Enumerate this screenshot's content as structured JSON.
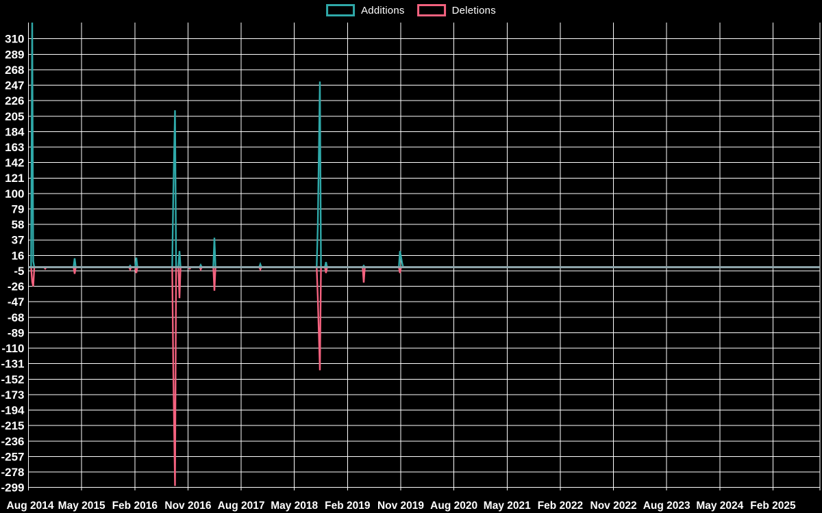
{
  "colors": {
    "background": "#000000",
    "grid": "#ffffff",
    "text": "#ffffff",
    "additions": "#2fa9a9",
    "deletions": "#f4627f",
    "baseline_blend": "#8fa6ac"
  },
  "chart_data": {
    "type": "line",
    "title": "",
    "description": "Weekly additions (positive) and deletions (negative) over time; flat at 0 between spike events",
    "legend_position": "top-center",
    "grid": true,
    "x_axis": {
      "unit": "months_since_first_tick",
      "tick_interval_months": 9,
      "ticks": [
        "Aug 2014",
        "May 2015",
        "Feb 2016",
        "Nov 2016",
        "Aug 2017",
        "May 2018",
        "Feb 2019",
        "Nov 2019",
        "Aug 2020",
        "May 2021",
        "Feb 2022",
        "Nov 2022",
        "Aug 2023",
        "May 2024",
        "Feb 2025"
      ]
    },
    "y_axis": {
      "ticks": [
        310,
        289,
        268,
        247,
        226,
        205,
        184,
        163,
        142,
        121,
        100,
        79,
        58,
        37,
        16,
        -5,
        -26,
        -47,
        -68,
        -89,
        -110,
        -131,
        -152,
        -173,
        -194,
        -215,
        -236,
        -257,
        -278,
        -299
      ],
      "max": 332,
      "min": -303
    },
    "baseline": {
      "value": 0,
      "blend_color": "#8fa6ac"
    },
    "series": [
      {
        "name": "Additions",
        "color": "#2fa9a9",
        "points_format": "[months_after_Aug_2014, value]",
        "points": [
          [
            0.64,
            335
          ],
          [
            0.81,
            8
          ],
          [
            7.82,
            12
          ],
          [
            17.21,
            2
          ],
          [
            18.26,
            13
          ],
          [
            24.52,
            100
          ],
          [
            24.81,
            213
          ],
          [
            25.56,
            22
          ],
          [
            29.15,
            3
          ],
          [
            31.47,
            40
          ],
          [
            39.24,
            4
          ],
          [
            48.97,
            54
          ],
          [
            49.32,
            252
          ],
          [
            50.36,
            7
          ],
          [
            56.74,
            2
          ],
          [
            62.88,
            22
          ],
          [
            63.23,
            6
          ]
        ]
      },
      {
        "name": "Deletions",
        "color": "#f4627f",
        "points_format": "[months_after_Aug_2014, value]",
        "points": [
          [
            0.64,
            -20
          ],
          [
            0.81,
            -26
          ],
          [
            2.84,
            -2
          ],
          [
            7.82,
            -9
          ],
          [
            17.21,
            -3
          ],
          [
            18.26,
            -8
          ],
          [
            24.52,
            -140
          ],
          [
            24.81,
            -297
          ],
          [
            25.56,
            -42
          ],
          [
            27.3,
            -2
          ],
          [
            29.15,
            -3
          ],
          [
            31.47,
            -32
          ],
          [
            39.24,
            -3
          ],
          [
            48.97,
            -40
          ],
          [
            49.32,
            -140
          ],
          [
            50.36,
            -8
          ],
          [
            56.74,
            -21
          ],
          [
            62.88,
            -8
          ]
        ]
      }
    ]
  }
}
